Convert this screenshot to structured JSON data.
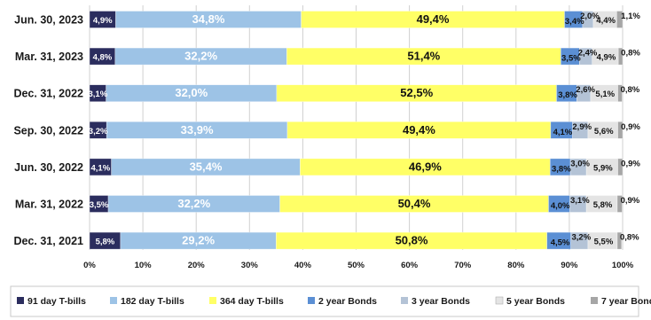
{
  "chart_data": {
    "type": "bar",
    "orientation": "horizontal",
    "stacked": "percent",
    "categories": [
      "Jun. 30, 2023",
      "Mar. 31, 2023",
      "Dec. 31, 2022",
      "Sep. 30, 2022",
      "Jun. 30, 2022",
      "Mar. 31, 2022",
      "Dec. 31, 2021"
    ],
    "series": [
      {
        "name": "91 day T-bills",
        "color": "#2b2d5e",
        "label_color": "#ffffff",
        "values": [
          4.9,
          4.8,
          3.1,
          3.2,
          4.1,
          3.5,
          5.8
        ],
        "labels": [
          "4,9%",
          "4,8%",
          "3,1%",
          "3,2%",
          "4,1%",
          "3,5%",
          "5,8%"
        ]
      },
      {
        "name": "182 day T-bills",
        "color": "#9dc3e6",
        "label_color": "#ffffff",
        "values": [
          34.8,
          32.2,
          32.0,
          33.9,
          35.4,
          32.2,
          29.2
        ],
        "labels": [
          "34,8%",
          "32,2%",
          "32,0%",
          "33,9%",
          "35,4%",
          "32,2%",
          "29,2%"
        ]
      },
      {
        "name": "364 day T-bills",
        "color": "#ffff66",
        "label_color": "#111111",
        "values": [
          49.4,
          51.4,
          52.5,
          49.4,
          46.9,
          50.4,
          50.8
        ],
        "labels": [
          "49,4%",
          "51,4%",
          "52,5%",
          "49,4%",
          "46,9%",
          "50,4%",
          "50,8%"
        ]
      },
      {
        "name": "2 year Bonds",
        "color": "#5b8fd4",
        "label_color": "#111111",
        "values": [
          3.4,
          3.5,
          3.8,
          4.1,
          3.8,
          4.0,
          4.5
        ],
        "labels": [
          "3,4%",
          "3,5%",
          "3,8%",
          "4,1%",
          "3,8%",
          "4,0%",
          "4,5%"
        ]
      },
      {
        "name": "3 year Bonds",
        "color": "#b4c3d6",
        "label_color": "#111111",
        "values": [
          2.0,
          2.4,
          2.6,
          2.9,
          3.0,
          3.1,
          3.2
        ],
        "labels": [
          "2,0%",
          "2,4%",
          "2,6%",
          "2,9%",
          "3,0%",
          "3,1%",
          "3,2%"
        ]
      },
      {
        "name": "5 year Bonds",
        "color": "#e4e4e4",
        "label_color": "#111111",
        "values": [
          4.4,
          4.9,
          5.1,
          5.6,
          5.9,
          5.8,
          5.5
        ],
        "labels": [
          "4,4%",
          "4,9%",
          "5,1%",
          "5,6%",
          "5,9%",
          "5,8%",
          "5,5%"
        ]
      },
      {
        "name": "7 year Bonds",
        "color": "#a6a6a6",
        "label_color": "#111111",
        "values": [
          1.1,
          0.8,
          0.8,
          0.9,
          0.9,
          0.9,
          0.8
        ],
        "labels": [
          "1,1%",
          "0,8%",
          "0,8%",
          "0,9%",
          "0,9%",
          "0,9%",
          "0,8%"
        ]
      }
    ],
    "xlim": [
      0,
      100
    ],
    "x_ticks": [
      "0%",
      "10%",
      "20%",
      "30%",
      "40%",
      "50%",
      "60%",
      "70%",
      "80%",
      "90%",
      "100%"
    ],
    "grid": true,
    "legend_position": "bottom"
  }
}
